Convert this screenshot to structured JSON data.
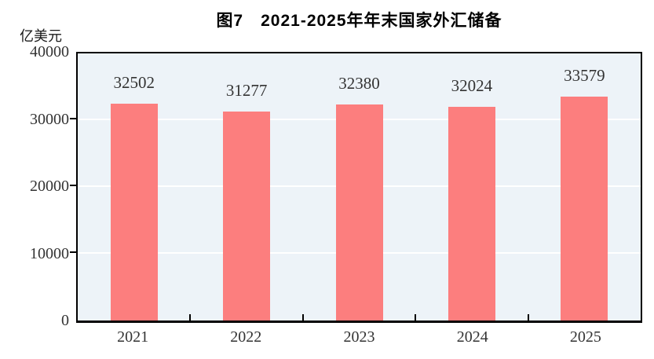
{
  "chart": {
    "title": "图7　2021-2025年年末国家外汇储备",
    "unit_label": "亿美元",
    "colors": {
      "bar": "#fc7e7e",
      "plot_background": "#edf3f8",
      "gridline": "#ffffff",
      "axis": "#000000",
      "label_text": "#333333",
      "title_text": "#000000"
    }
  },
  "chart_data": {
    "type": "bar",
    "title": "图7　2021-2025年年末国家外汇储备",
    "categories": [
      "2021",
      "2022",
      "2023",
      "2024",
      "2025"
    ],
    "values": [
      32502,
      31277,
      32380,
      32024,
      33579
    ],
    "data_labels": [
      "32502",
      "31277",
      "32380",
      "32024",
      "33579"
    ],
    "xlabel": "",
    "ylabel": "亿美元",
    "ylim": [
      0,
      40000
    ],
    "y_ticks": [
      "40000",
      "30000",
      "20000",
      "10000",
      "0"
    ],
    "gridline_values": [
      30000,
      20000,
      10000
    ],
    "grid": true,
    "legend": false
  }
}
